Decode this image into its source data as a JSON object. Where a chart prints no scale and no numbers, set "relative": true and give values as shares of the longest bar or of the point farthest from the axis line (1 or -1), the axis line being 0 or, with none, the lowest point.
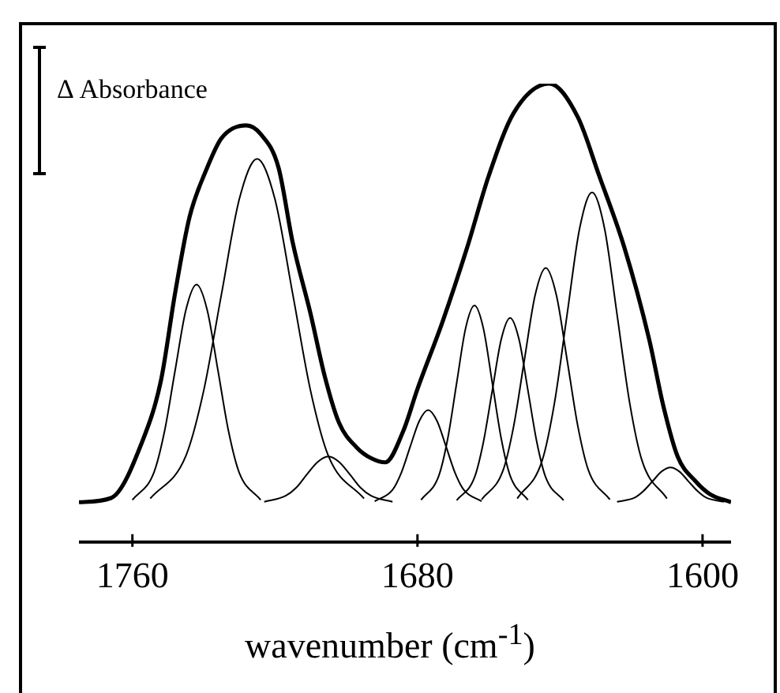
{
  "chart_data": {
    "type": "line",
    "relative": true,
    "xlabel": "wavenumber (cm$^{-1}$)",
    "ylabel": "Δ Absorbance",
    "xlim": [
      1775,
      1592
    ],
    "xticks": [
      1760,
      1680,
      1600
    ],
    "tick_labels": "x",
    "grid": false,
    "legend": false,
    "marker": "none",
    "line_style": "solid",
    "series": [
      {
        "color": "#000000",
        "x": [
          1775,
          1766,
          1757,
          1752,
          1748,
          1744,
          1739,
          1735,
          1728,
          1724,
          1719,
          1715,
          1710,
          1706,
          1702,
          1697,
          1693,
          1689,
          1684,
          1680,
          1673,
          1666,
          1660,
          1653,
          1643,
          1635,
          1629,
          1622,
          1615,
          1611,
          1607,
          1602,
          1598,
          1592
        ],
        "values": [
          0.087,
          0.096,
          0.224,
          0.352,
          0.544,
          0.708,
          0.817,
          0.881,
          0.909,
          0.89,
          0.817,
          0.653,
          0.498,
          0.361,
          0.26,
          0.206,
          0.183,
          0.174,
          0.242,
          0.334,
          0.48,
          0.644,
          0.799,
          0.936,
          1,
          0.927,
          0.799,
          0.644,
          0.443,
          0.297,
          0.187,
          0.133,
          0.105,
          0.087
        ]
      },
      {
        "color": "#000000",
        "x": [
          1760,
          1754,
          1751,
          1748,
          1745,
          1742,
          1739,
          1736,
          1733,
          1730,
          1724
        ],
        "values": [
          0.092,
          0.151,
          0.241,
          0.375,
          0.506,
          0.562,
          0.506,
          0.375,
          0.241,
          0.151,
          0.092
        ]
      },
      {
        "color": "#000000",
        "x": [
          1755,
          1745,
          1740,
          1735,
          1730,
          1725,
          1720,
          1715,
          1710,
          1705,
          1695
        ],
        "values": [
          0.095,
          0.188,
          0.33,
          0.541,
          0.748,
          0.836,
          0.748,
          0.541,
          0.33,
          0.188,
          0.095
        ]
      },
      {
        "color": "#000000",
        "x": [
          1723,
          1717,
          1714,
          1711,
          1708,
          1705,
          1702,
          1699,
          1696,
          1693,
          1687
        ],
        "values": [
          0.088,
          0.101,
          0.119,
          0.148,
          0.175,
          0.187,
          0.175,
          0.148,
          0.119,
          0.101,
          0.088
        ]
      },
      {
        "color": "#000000",
        "x": [
          1692,
          1687,
          1684.5,
          1682,
          1679.5,
          1677,
          1674.5,
          1672,
          1669.5,
          1667,
          1662
        ],
        "values": [
          0.089,
          0.114,
          0.152,
          0.209,
          0.264,
          0.288,
          0.264,
          0.209,
          0.152,
          0.114,
          0.089
        ]
      },
      {
        "color": "#000000",
        "x": [
          1679,
          1674,
          1671.5,
          1669,
          1666.5,
          1664,
          1661.5,
          1659,
          1656.5,
          1654,
          1649
        ],
        "values": [
          0.092,
          0.145,
          0.226,
          0.347,
          0.466,
          0.516,
          0.466,
          0.347,
          0.226,
          0.145,
          0.092
        ]
      },
      {
        "color": "#000000",
        "x": [
          1669,
          1664,
          1661.5,
          1659,
          1656.5,
          1654,
          1651.5,
          1649,
          1646.5,
          1644,
          1639
        ],
        "values": [
          0.091,
          0.141,
          0.218,
          0.331,
          0.442,
          0.489,
          0.442,
          0.331,
          0.218,
          0.141,
          0.091
        ]
      },
      {
        "color": "#000000",
        "x": [
          1662,
          1656,
          1653,
          1650,
          1647,
          1644,
          1641,
          1638,
          1635,
          1632,
          1626
        ],
        "values": [
          0.093,
          0.156,
          0.253,
          0.397,
          0.538,
          0.598,
          0.538,
          0.397,
          0.253,
          0.156,
          0.093
        ]
      },
      {
        "color": "#000000",
        "x": [
          1652,
          1645,
          1641.5,
          1638,
          1634.5,
          1631,
          1627.5,
          1624,
          1620.5,
          1617,
          1610
        ],
        "values": [
          0.095,
          0.178,
          0.306,
          0.497,
          0.684,
          0.763,
          0.684,
          0.497,
          0.306,
          0.178,
          0.095
        ]
      },
      {
        "color": "#000000",
        "x": [
          1624,
          1619,
          1616.5,
          1614,
          1611.5,
          1609,
          1606.5,
          1604,
          1601.5,
          1599,
          1594
        ],
        "values": [
          0.088,
          0.097,
          0.112,
          0.133,
          0.154,
          0.163,
          0.154,
          0.133,
          0.112,
          0.097,
          0.088
        ]
      }
    ]
  }
}
